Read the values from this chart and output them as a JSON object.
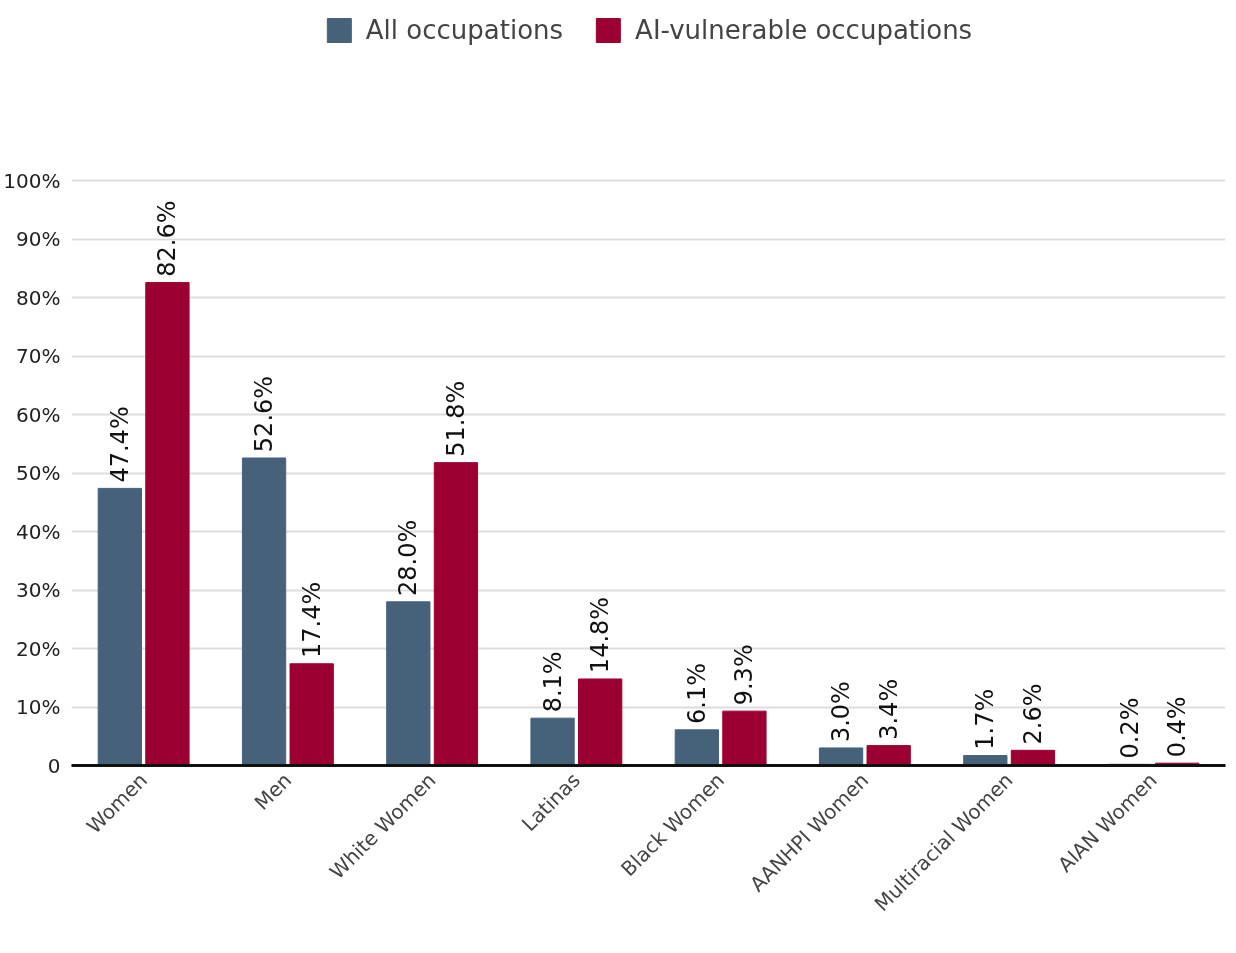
{
  "chart_data": {
    "type": "bar",
    "categories": [
      "Women",
      "Men",
      "White Women",
      "Latinas",
      "Black Women",
      "AANHPI Women",
      "Multiracial Women",
      "AIAN Women"
    ],
    "series": [
      {
        "name": "All occupations",
        "color": "#46627a",
        "values": [
          47.4,
          52.6,
          28.0,
          8.1,
          6.1,
          3.0,
          1.7,
          0.2
        ],
        "value_labels": [
          "47.4%",
          "52.6%",
          "28.0%",
          "8.1%",
          "6.1%",
          "3.0%",
          "1.7%",
          "0.2%"
        ]
      },
      {
        "name": "AI-vulnerable occupations",
        "color": "#9b0030",
        "values": [
          82.6,
          17.4,
          51.8,
          14.8,
          9.3,
          3.4,
          2.6,
          0.4
        ],
        "value_labels": [
          "82.6%",
          "17.4%",
          "51.8%",
          "14.8%",
          "9.3%",
          "3.4%",
          "2.6%",
          "0.4%"
        ]
      }
    ],
    "ylim": [
      0,
      100
    ],
    "yticks": [
      {
        "value": 0,
        "label": "0"
      },
      {
        "value": 10,
        "label": "10%"
      },
      {
        "value": 20,
        "label": "20%"
      },
      {
        "value": 30,
        "label": "30%"
      },
      {
        "value": 40,
        "label": "40%"
      },
      {
        "value": 50,
        "label": "50%"
      },
      {
        "value": 60,
        "label": "60%"
      },
      {
        "value": 70,
        "label": "70%"
      },
      {
        "value": 80,
        "label": "80%"
      },
      {
        "value": 90,
        "label": "90%"
      },
      {
        "value": 100,
        "label": "100%"
      }
    ],
    "grid": "y",
    "legend": "top"
  }
}
